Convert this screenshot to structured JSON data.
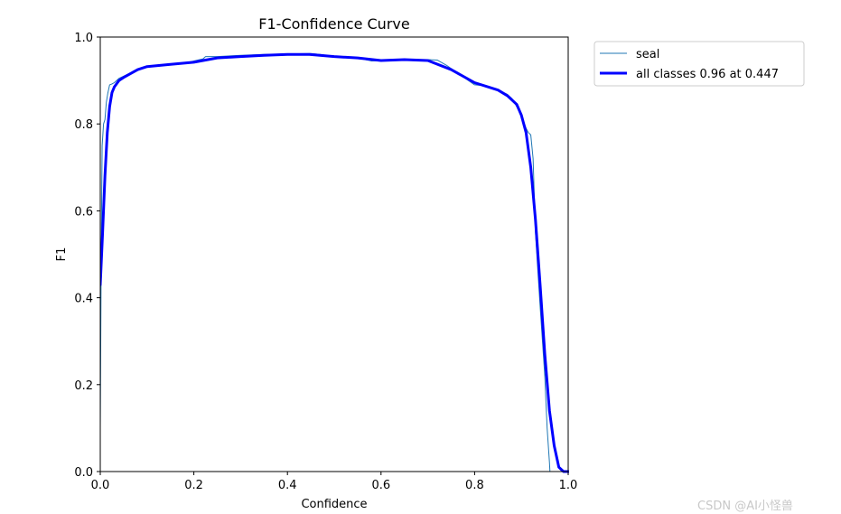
{
  "watermark": "CSDN @AI小怪兽",
  "chart_data": {
    "type": "line",
    "title": "F1-Confidence Curve",
    "xlabel": "Confidence",
    "ylabel": "F1",
    "xlim": [
      0.0,
      1.0
    ],
    "ylim": [
      0.0,
      1.0
    ],
    "xticks": [
      "0.0",
      "0.2",
      "0.4",
      "0.6",
      "0.8",
      "1.0"
    ],
    "yticks": [
      "0.0",
      "0.2",
      "0.4",
      "0.6",
      "0.8",
      "1.0"
    ],
    "grid": false,
    "legend_position": "outside upper right",
    "series": [
      {
        "name": "seal",
        "color": "#1f77b4",
        "x": [
          0.0,
          0.002,
          0.004,
          0.007,
          0.01,
          0.013,
          0.016,
          0.02,
          0.025,
          0.03,
          0.035,
          0.04,
          0.05,
          0.06,
          0.08,
          0.1,
          0.12,
          0.15,
          0.18,
          0.2,
          0.22,
          0.225,
          0.25,
          0.3,
          0.35,
          0.4,
          0.45,
          0.47,
          0.5,
          0.52,
          0.55,
          0.58,
          0.6,
          0.65,
          0.7,
          0.72,
          0.74,
          0.76,
          0.78,
          0.8,
          0.82,
          0.85,
          0.87,
          0.88,
          0.89,
          0.9,
          0.91,
          0.915,
          0.92,
          0.925,
          0.93,
          0.94,
          0.95,
          0.955,
          0.96,
          0.961
        ],
        "y": [
          0.1,
          0.5,
          0.75,
          0.8,
          0.81,
          0.85,
          0.87,
          0.89,
          0.892,
          0.895,
          0.9,
          0.905,
          0.91,
          0.915,
          0.925,
          0.933,
          0.935,
          0.938,
          0.94,
          0.945,
          0.95,
          0.955,
          0.955,
          0.958,
          0.96,
          0.961,
          0.962,
          0.96,
          0.955,
          0.955,
          0.952,
          0.945,
          0.946,
          0.948,
          0.948,
          0.947,
          0.935,
          0.92,
          0.905,
          0.89,
          0.888,
          0.878,
          0.868,
          0.858,
          0.84,
          0.82,
          0.79,
          0.78,
          0.775,
          0.72,
          0.55,
          0.38,
          0.22,
          0.1,
          0.02,
          0.0
        ]
      },
      {
        "name": "all classes 0.96 at 0.447",
        "color": "#0000ff",
        "x": [
          0.0,
          0.005,
          0.01,
          0.015,
          0.02,
          0.025,
          0.03,
          0.04,
          0.05,
          0.06,
          0.08,
          0.1,
          0.15,
          0.2,
          0.25,
          0.3,
          0.35,
          0.4,
          0.447,
          0.5,
          0.55,
          0.6,
          0.65,
          0.7,
          0.75,
          0.8,
          0.85,
          0.87,
          0.89,
          0.9,
          0.91,
          0.92,
          0.93,
          0.94,
          0.95,
          0.96,
          0.97,
          0.98,
          0.99,
          1.0
        ],
        "y": [
          0.43,
          0.55,
          0.68,
          0.78,
          0.84,
          0.872,
          0.885,
          0.9,
          0.907,
          0.913,
          0.925,
          0.932,
          0.937,
          0.942,
          0.952,
          0.955,
          0.958,
          0.96,
          0.96,
          0.955,
          0.952,
          0.946,
          0.948,
          0.946,
          0.925,
          0.895,
          0.878,
          0.865,
          0.845,
          0.82,
          0.78,
          0.7,
          0.58,
          0.43,
          0.27,
          0.14,
          0.06,
          0.01,
          0.0,
          0.0
        ]
      }
    ]
  }
}
